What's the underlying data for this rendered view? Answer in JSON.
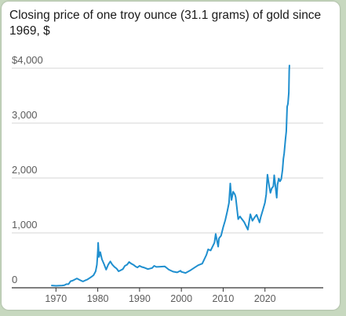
{
  "chart_data": {
    "type": "line",
    "title": "Closing price of one troy ounce (31.1 grams) of gold since 1969, $",
    "xlabel": "",
    "ylabel": "",
    "xlim": [
      1966,
      2033
    ],
    "ylim": [
      0,
      4100
    ],
    "x_ticks": [
      1970,
      1980,
      1990,
      2000,
      2010,
      2020
    ],
    "x_tick_labels": [
      "1970",
      "1980",
      "1990",
      "2000",
      "2010",
      "2020"
    ],
    "y_ticks": [
      0,
      1000,
      2000,
      3000,
      4000
    ],
    "y_tick_labels": [
      "0",
      "1,000",
      "2,000",
      "3,000",
      "$4,000"
    ],
    "grid": "horizontal",
    "colors": {
      "line": "#1f8fcf",
      "grid": "#d6d6d6",
      "axis": "#333333"
    },
    "series": [
      {
        "values": [
          [
            1969.0,
            42
          ],
          [
            1970.0,
            36
          ],
          [
            1971.0,
            40
          ],
          [
            1971.5,
            42
          ],
          [
            1972.0,
            46
          ],
          [
            1972.5,
            65
          ],
          [
            1973.0,
            65
          ],
          [
            1973.5,
            120
          ],
          [
            1974.0,
            130
          ],
          [
            1974.5,
            150
          ],
          [
            1975.0,
            170
          ],
          [
            1975.5,
            150
          ],
          [
            1976.0,
            130
          ],
          [
            1976.5,
            115
          ],
          [
            1977.0,
            135
          ],
          [
            1977.5,
            150
          ],
          [
            1978.0,
            175
          ],
          [
            1978.5,
            200
          ],
          [
            1979.0,
            230
          ],
          [
            1979.5,
            300
          ],
          [
            1979.8,
            420
          ],
          [
            1980.0,
            650
          ],
          [
            1980.1,
            820
          ],
          [
            1980.3,
            560
          ],
          [
            1980.6,
            650
          ],
          [
            1981.0,
            520
          ],
          [
            1981.5,
            430
          ],
          [
            1982.0,
            330
          ],
          [
            1982.5,
            420
          ],
          [
            1983.0,
            480
          ],
          [
            1983.5,
            420
          ],
          [
            1984.0,
            380
          ],
          [
            1984.5,
            350
          ],
          [
            1985.0,
            300
          ],
          [
            1985.5,
            320
          ],
          [
            1986.0,
            340
          ],
          [
            1986.5,
            400
          ],
          [
            1987.0,
            420
          ],
          [
            1987.5,
            470
          ],
          [
            1988.0,
            440
          ],
          [
            1988.5,
            420
          ],
          [
            1989.0,
            390
          ],
          [
            1989.5,
            370
          ],
          [
            1990.0,
            400
          ],
          [
            1990.5,
            380
          ],
          [
            1991.0,
            370
          ],
          [
            1992.0,
            340
          ],
          [
            1993.0,
            360
          ],
          [
            1993.5,
            400
          ],
          [
            1994.0,
            380
          ],
          [
            1995.0,
            385
          ],
          [
            1996.0,
            390
          ],
          [
            1997.0,
            330
          ],
          [
            1998.0,
            295
          ],
          [
            1999.0,
            280
          ],
          [
            1999.8,
            310
          ],
          [
            2000.0,
            290
          ],
          [
            2001.0,
            270
          ],
          [
            2002.0,
            310
          ],
          [
            2003.0,
            360
          ],
          [
            2004.0,
            410
          ],
          [
            2005.0,
            440
          ],
          [
            2006.0,
            600
          ],
          [
            2006.4,
            700
          ],
          [
            2007.0,
            680
          ],
          [
            2007.9,
            820
          ],
          [
            2008.2,
            980
          ],
          [
            2008.8,
            750
          ],
          [
            2009.0,
            900
          ],
          [
            2009.5,
            950
          ],
          [
            2010.0,
            1100
          ],
          [
            2010.5,
            1230
          ],
          [
            2011.0,
            1400
          ],
          [
            2011.4,
            1550
          ],
          [
            2011.7,
            1900
          ],
          [
            2012.0,
            1600
          ],
          [
            2012.4,
            1750
          ],
          [
            2012.8,
            1700
          ],
          [
            2013.0,
            1650
          ],
          [
            2013.3,
            1450
          ],
          [
            2013.6,
            1250
          ],
          [
            2014.0,
            1300
          ],
          [
            2014.5,
            1250
          ],
          [
            2015.0,
            1200
          ],
          [
            2015.9,
            1060
          ],
          [
            2016.5,
            1340
          ],
          [
            2017.0,
            1220
          ],
          [
            2017.5,
            1280
          ],
          [
            2018.0,
            1330
          ],
          [
            2018.7,
            1190
          ],
          [
            2019.0,
            1290
          ],
          [
            2019.5,
            1420
          ],
          [
            2020.0,
            1550
          ],
          [
            2020.3,
            1700
          ],
          [
            2020.6,
            2060
          ],
          [
            2021.0,
            1850
          ],
          [
            2021.3,
            1730
          ],
          [
            2021.6,
            1810
          ],
          [
            2022.0,
            1850
          ],
          [
            2022.2,
            2050
          ],
          [
            2022.8,
            1640
          ],
          [
            2023.0,
            1880
          ],
          [
            2023.3,
            1990
          ],
          [
            2023.6,
            1940
          ],
          [
            2023.9,
            1980
          ],
          [
            2024.2,
            2150
          ],
          [
            2024.4,
            2350
          ],
          [
            2024.6,
            2450
          ],
          [
            2024.9,
            2700
          ],
          [
            2025.1,
            2850
          ],
          [
            2025.3,
            3300
          ],
          [
            2025.5,
            3350
          ],
          [
            2025.7,
            3550
          ],
          [
            2025.8,
            3950
          ],
          [
            2025.85,
            4050
          ]
        ]
      }
    ]
  }
}
